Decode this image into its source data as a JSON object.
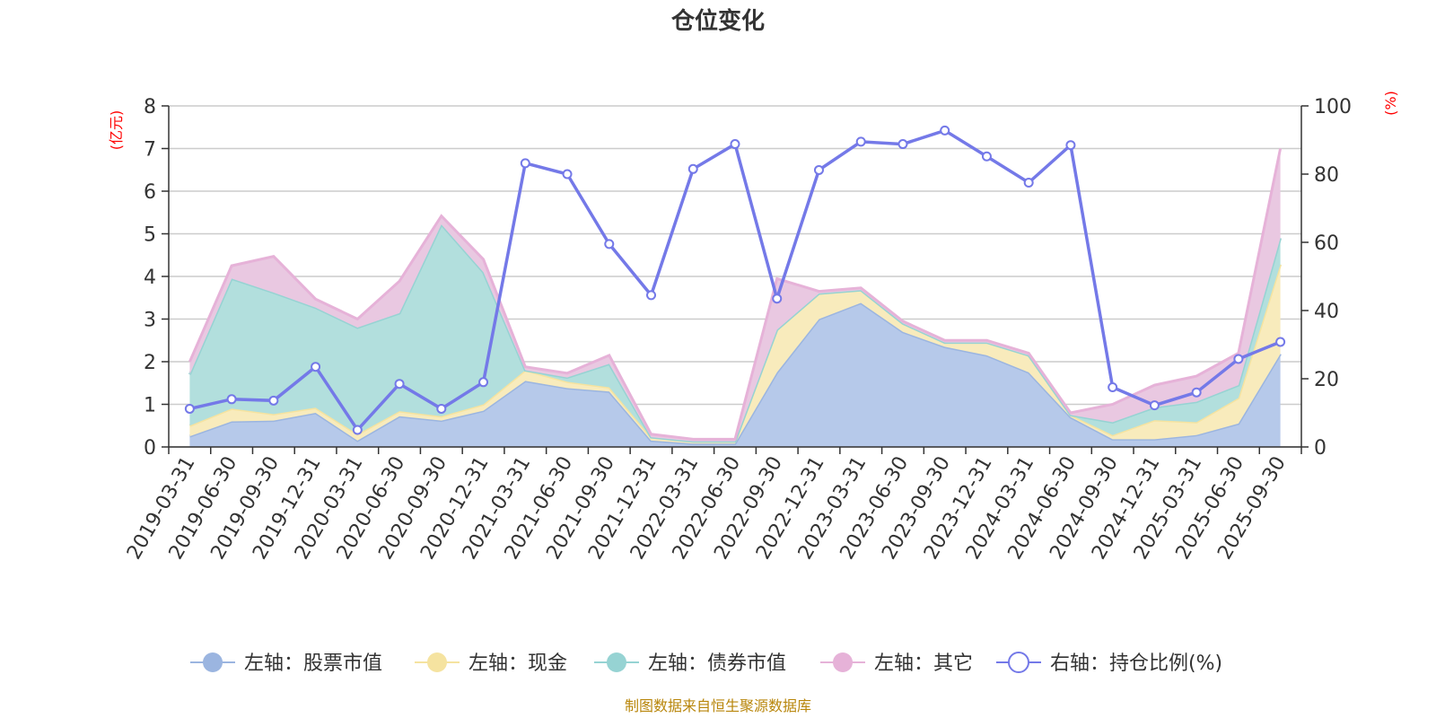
{
  "chart_data": {
    "type": "area",
    "title": "仓位变化",
    "left_axis": {
      "unit": "(亿元)",
      "ylim": [
        0,
        8
      ],
      "ticks": [
        "0",
        "1",
        "2",
        "3",
        "4",
        "5",
        "6",
        "7",
        "8"
      ]
    },
    "right_axis": {
      "unit": "(%)",
      "ylim": [
        0,
        100
      ],
      "ticks": [
        "0",
        "20",
        "40",
        "60",
        "80",
        "100"
      ]
    },
    "categories": [
      "2019-03-31",
      "2019-06-30",
      "2019-09-30",
      "2019-12-31",
      "2020-03-31",
      "2020-06-30",
      "2020-09-30",
      "2020-12-31",
      "2021-03-31",
      "2021-06-30",
      "2021-09-30",
      "2021-12-31",
      "2022-03-31",
      "2022-06-30",
      "2022-09-30",
      "2022-12-31",
      "2023-03-31",
      "2023-06-30",
      "2023-09-30",
      "2023-12-31",
      "2024-03-31",
      "2024-06-30",
      "2024-09-30",
      "2024-12-31",
      "2025-03-31",
      "2025-06-30",
      "2025-09-30"
    ],
    "series": [
      {
        "name": "左轴：股票市值",
        "axis": "left",
        "stack": true,
        "color": "#9bb5e0",
        "fill": "#b6c9ea",
        "values": [
          0.25,
          0.6,
          0.62,
          0.8,
          0.15,
          0.72,
          0.62,
          0.85,
          1.55,
          1.38,
          1.3,
          0.15,
          0.08,
          0.08,
          1.75,
          3.0,
          3.38,
          2.7,
          2.35,
          2.15,
          1.75,
          0.7,
          0.18,
          0.18,
          0.28,
          0.55,
          2.18
        ]
      },
      {
        "name": "左轴：现金",
        "axis": "left",
        "stack": true,
        "color": "#f5e3a0",
        "fill": "#f8ebbc",
        "values": [
          0.25,
          0.3,
          0.15,
          0.12,
          0.15,
          0.12,
          0.1,
          0.15,
          0.25,
          0.15,
          0.1,
          0.08,
          0.05,
          0.05,
          1.0,
          0.6,
          0.3,
          0.2,
          0.1,
          0.3,
          0.4,
          0.05,
          0.1,
          0.45,
          0.3,
          0.6,
          2.1
        ]
      },
      {
        "name": "左轴：债券市值",
        "axis": "left",
        "stack": true,
        "color": "#96d3d3",
        "fill": "#b2dfdd",
        "values": [
          1.2,
          3.05,
          2.85,
          2.35,
          2.5,
          2.3,
          4.5,
          3.1,
          0.0,
          0.1,
          0.55,
          0.0,
          0.0,
          0.0,
          0.0,
          0.0,
          0.0,
          0.0,
          0.0,
          0.0,
          0.0,
          0.0,
          0.3,
          0.3,
          0.48,
          0.3,
          0.62
        ]
      },
      {
        "name": "左轴：其它",
        "axis": "left",
        "stack": true,
        "color": "#e6b2d8",
        "fill": "#e9c8e1",
        "values": [
          0.3,
          0.3,
          0.85,
          0.2,
          0.2,
          0.75,
          0.2,
          0.3,
          0.08,
          0.1,
          0.2,
          0.07,
          0.05,
          0.05,
          1.2,
          0.05,
          0.05,
          0.05,
          0.05,
          0.05,
          0.05,
          0.05,
          0.42,
          0.52,
          0.6,
          0.75,
          2.1
        ]
      },
      {
        "name": "右轴：持仓比例(%)",
        "axis": "right",
        "type": "line",
        "color": "#7479e8",
        "values": [
          11.2,
          14.0,
          13.6,
          23.5,
          5.0,
          18.5,
          11.2,
          19.0,
          83.2,
          80.0,
          59.5,
          44.5,
          81.5,
          88.8,
          43.5,
          81.2,
          89.5,
          88.8,
          92.8,
          85.2,
          77.5,
          88.5,
          17.5,
          12.2,
          16.0,
          25.8,
          30.8
        ]
      }
    ],
    "legend_position": "bottom"
  },
  "source_text": "制图数据来自恒生聚源数据库"
}
